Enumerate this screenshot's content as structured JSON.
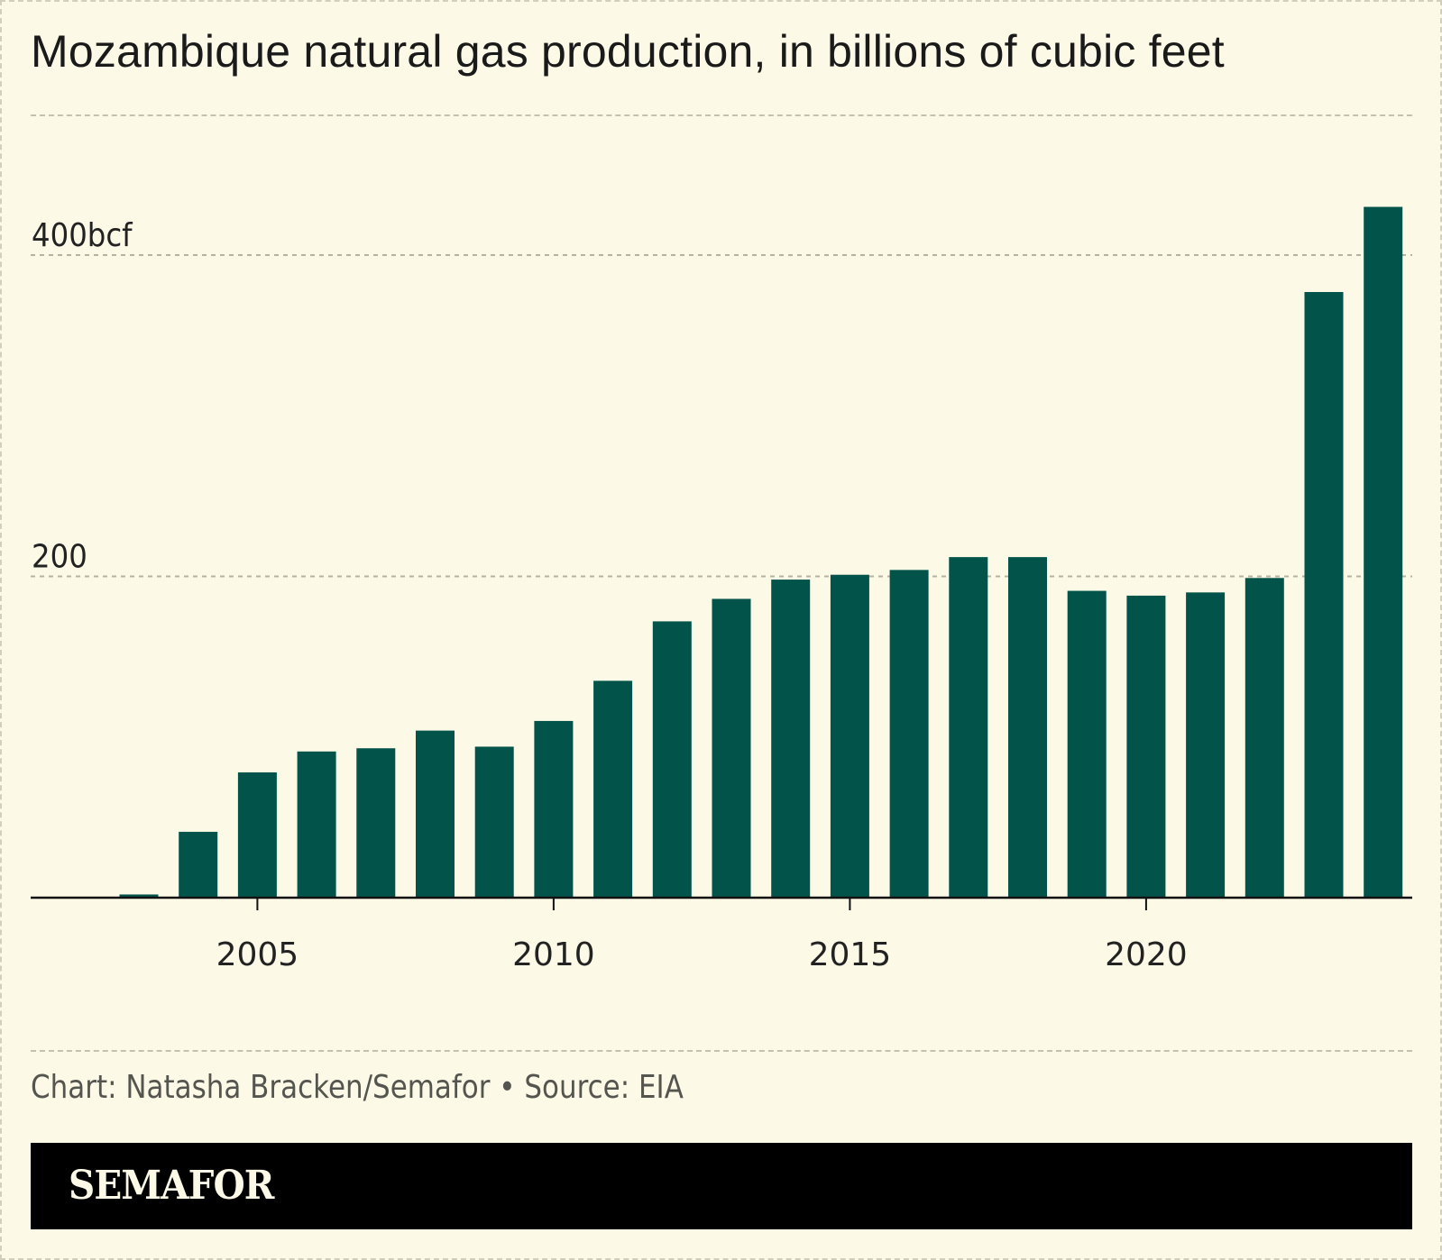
{
  "chart_data": {
    "type": "bar",
    "title": "Mozambique natural gas production, in billions of cubic feet",
    "categories": [
      "2003",
      "2004",
      "2005",
      "2006",
      "2007",
      "2008",
      "2009",
      "2010",
      "2011",
      "2012",
      "2013",
      "2014",
      "2015",
      "2016",
      "2017",
      "2018",
      "2019",
      "2020",
      "2021",
      "2022",
      "2023",
      "2024"
    ],
    "values": [
      2,
      41,
      78,
      91,
      93,
      104,
      94,
      110,
      135,
      172,
      186,
      198,
      201,
      204,
      212,
      212,
      191,
      188,
      190,
      199,
      377,
      430
    ],
    "xlabel": "",
    "ylabel": "",
    "ylim": [
      0,
      490
    ],
    "y_ticks": [
      {
        "value": 200,
        "label": "200"
      },
      {
        "value": 400,
        "label": "400bcf"
      }
    ],
    "x_ticks": [
      {
        "value": "2005",
        "label": "2005"
      },
      {
        "value": "2010",
        "label": "2010"
      },
      {
        "value": "2015",
        "label": "2015"
      },
      {
        "value": "2020",
        "label": "2020"
      }
    ],
    "grid": true,
    "bar_color": "#02544b"
  },
  "footer": {
    "credit": "Chart: Natasha Bracken/Semafor • Source: EIA",
    "brand": "SEMAFOR"
  }
}
